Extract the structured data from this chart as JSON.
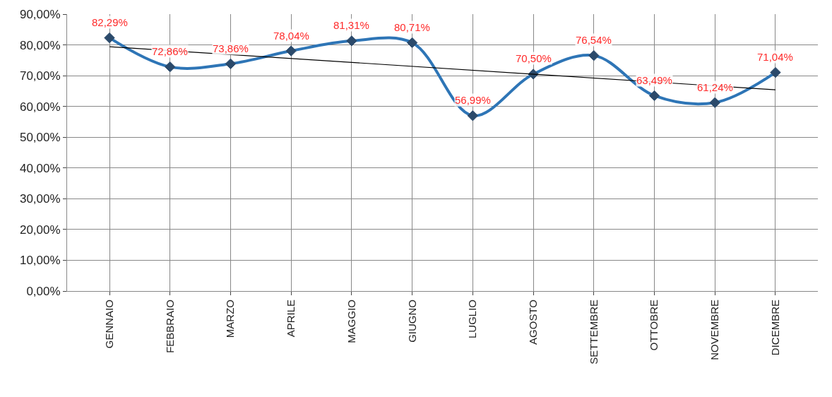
{
  "chart_data": {
    "type": "line",
    "categories": [
      "GENNAIO",
      "FEBBRAIO",
      "MARZO",
      "APRILE",
      "MAGGIO",
      "GIUGNO",
      "LUGLIO",
      "AGOSTO",
      "SETTEMBRE",
      "OTTOBRE",
      "NOVEMBRE",
      "DICEMBRE"
    ],
    "series": [
      {
        "color": "#2e75b6",
        "marker": "diamond",
        "values": [
          82.29,
          72.86,
          73.86,
          78.04,
          81.31,
          80.71,
          56.99,
          70.5,
          76.54,
          63.49,
          61.24,
          71.04
        ],
        "value_labels": [
          "82,29%",
          "72,86%",
          "73,86%",
          "78,04%",
          "81,31%",
          "80,71%",
          "56,99%",
          "70,50%",
          "76,54%",
          "63,49%",
          "61,24%",
          "71,04%"
        ]
      },
      {
        "type": "line",
        "color": "#000000",
        "marker": "none",
        "x": [
          "GENNAIO",
          "DICEMBRE"
        ],
        "values": [
          79.4,
          65.4
        ]
      }
    ],
    "ylim": [
      0,
      90
    ],
    "yticks": [
      {
        "value": 0,
        "label": "0,00%"
      },
      {
        "value": 10,
        "label": "10,00%"
      },
      {
        "value": 20,
        "label": "20,00%"
      },
      {
        "value": 30,
        "label": "30,00%"
      },
      {
        "value": 40,
        "label": "40,00%"
      },
      {
        "value": 50,
        "label": "50,00%"
      },
      {
        "value": 60,
        "label": "60,00%"
      },
      {
        "value": 70,
        "label": "70,00%"
      },
      {
        "value": 80,
        "label": "80,00%"
      },
      {
        "value": 90,
        "label": "90,00%"
      }
    ],
    "grid": true
  }
}
